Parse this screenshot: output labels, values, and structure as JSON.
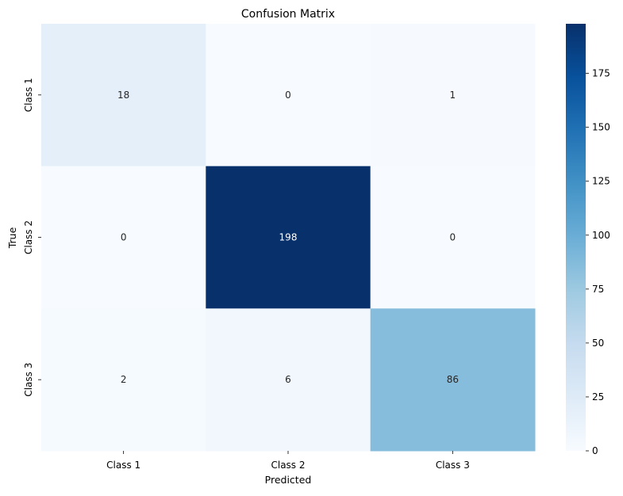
{
  "chart_data": {
    "type": "heatmap",
    "title": "Confusion Matrix",
    "xlabel": "Predicted",
    "ylabel": "True",
    "x_categories": [
      "Class 1",
      "Class 2",
      "Class 3"
    ],
    "y_categories": [
      "Class 1",
      "Class 2",
      "Class 3"
    ],
    "values": [
      [
        18,
        0,
        1
      ],
      [
        0,
        198,
        0
      ],
      [
        2,
        6,
        86
      ]
    ],
    "colormap": "Blues",
    "color_range": [
      0,
      198
    ],
    "colorbar_ticks": [
      0,
      25,
      50,
      75,
      100,
      125,
      150,
      175
    ],
    "annotations": true,
    "grid": false,
    "colors": {
      "low": "#f7fbff",
      "high": "#08306b",
      "text_dark": "#262626",
      "text_light": "#ffffff"
    }
  }
}
